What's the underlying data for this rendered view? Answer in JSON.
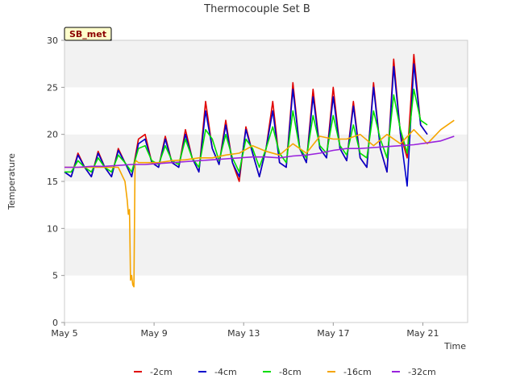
{
  "chart_data": {
    "type": "line",
    "title": "Thermocouple Set B",
    "xlabel": "Time",
    "ylabel": "Temperature",
    "ylim": [
      0,
      30
    ],
    "xlim": [
      "2023-05-05",
      "2023-05-23"
    ],
    "yticks": [
      0,
      5,
      10,
      15,
      20,
      25,
      30
    ],
    "xticks": [
      {
        "label": "May 5",
        "value": 0
      },
      {
        "label": "May 9",
        "value": 4
      },
      {
        "label": "May 13",
        "value": 8
      },
      {
        "label": "May 17",
        "value": 12
      },
      {
        "label": "May 21",
        "value": 16
      }
    ],
    "grid": "horizontal alternating bands",
    "legend_position": "bottom",
    "annotation": "SB_met",
    "series": [
      {
        "name": "-2cm",
        "color": "#e00000",
        "x": [
          0.0,
          0.3,
          0.6,
          0.9,
          1.2,
          1.5,
          1.8,
          2.1,
          2.4,
          2.7,
          3.0,
          3.3,
          3.6,
          3.9,
          4.2,
          4.5,
          4.8,
          5.1,
          5.4,
          5.7,
          6.0,
          6.3,
          6.6,
          6.9,
          7.2,
          7.5,
          7.8,
          8.1,
          8.4,
          8.7,
          9.0,
          9.3,
          9.6,
          9.9,
          10.2,
          10.5,
          10.8,
          11.1,
          11.4,
          11.7,
          12.0,
          12.3,
          12.6,
          12.9,
          13.2,
          13.5,
          13.8,
          14.1,
          14.4,
          14.7,
          15.0,
          15.3,
          15.6,
          15.9,
          16.2,
          16.5,
          16.8,
          17.1,
          17.4
        ],
        "y": [
          16.0,
          15.5,
          18.0,
          16.5,
          15.5,
          18.2,
          16.5,
          15.5,
          18.5,
          17.0,
          15.5,
          19.5,
          20.0,
          17.0,
          16.5,
          19.8,
          17.0,
          16.5,
          20.5,
          17.5,
          16.0,
          23.5,
          18.5,
          16.8,
          21.5,
          17.0,
          15.0,
          20.8,
          18.0,
          15.5,
          18.5,
          23.5,
          17.0,
          16.5,
          25.5,
          18.5,
          17.0,
          24.8,
          18.5,
          17.5,
          25.0,
          18.5,
          17.2,
          23.5,
          17.5,
          16.5,
          25.5,
          18.5,
          16.0,
          28.0,
          20.0,
          17.5,
          28.5,
          21.0,
          20.0,
          null,
          null,
          null,
          null
        ]
      },
      {
        "name": "-4cm",
        "color": "#0000cc",
        "x": [
          0.0,
          0.3,
          0.6,
          0.9,
          1.2,
          1.5,
          1.8,
          2.1,
          2.4,
          2.7,
          3.0,
          3.3,
          3.6,
          3.9,
          4.2,
          4.5,
          4.8,
          5.1,
          5.4,
          5.7,
          6.0,
          6.3,
          6.6,
          6.9,
          7.2,
          7.5,
          7.8,
          8.1,
          8.4,
          8.7,
          9.0,
          9.3,
          9.6,
          9.9,
          10.2,
          10.5,
          10.8,
          11.1,
          11.4,
          11.7,
          12.0,
          12.3,
          12.6,
          12.9,
          13.2,
          13.5,
          13.8,
          14.1,
          14.4,
          14.7,
          15.0,
          15.3,
          15.6,
          15.9,
          16.2,
          16.5,
          16.8,
          17.1,
          17.4
        ],
        "y": [
          16.0,
          15.5,
          17.8,
          16.5,
          15.5,
          18.0,
          16.5,
          15.5,
          18.3,
          17.0,
          15.5,
          19.0,
          19.5,
          17.0,
          16.5,
          19.5,
          17.0,
          16.5,
          20.0,
          17.5,
          16.0,
          22.5,
          18.5,
          16.8,
          21.0,
          17.0,
          15.5,
          20.5,
          18.0,
          15.5,
          18.5,
          22.5,
          17.0,
          16.5,
          24.8,
          18.5,
          17.0,
          24.0,
          18.5,
          17.5,
          24.0,
          18.5,
          17.2,
          23.0,
          17.5,
          16.5,
          25.0,
          18.5,
          16.0,
          27.2,
          20.0,
          14.5,
          27.5,
          21.0,
          20.0,
          null,
          null,
          null,
          null
        ]
      },
      {
        "name": "-8cm",
        "color": "#00dd00",
        "x": [
          0.0,
          0.3,
          0.6,
          0.9,
          1.2,
          1.5,
          1.8,
          2.1,
          2.4,
          2.7,
          3.0,
          3.3,
          3.6,
          3.9,
          4.2,
          4.5,
          4.8,
          5.1,
          5.4,
          5.7,
          6.0,
          6.3,
          6.6,
          6.9,
          7.2,
          7.5,
          7.8,
          8.1,
          8.4,
          8.7,
          9.0,
          9.3,
          9.6,
          9.9,
          10.2,
          10.5,
          10.8,
          11.1,
          11.4,
          11.7,
          12.0,
          12.3,
          12.6,
          12.9,
          13.2,
          13.5,
          13.8,
          14.1,
          14.4,
          14.7,
          15.0,
          15.3,
          15.6,
          15.9,
          16.2,
          16.5,
          16.8,
          17.1,
          17.4
        ],
        "y": [
          16.0,
          16.0,
          17.2,
          16.5,
          16.0,
          17.5,
          16.5,
          16.0,
          17.8,
          17.0,
          16.0,
          18.5,
          18.8,
          17.2,
          16.8,
          18.8,
          17.2,
          16.8,
          19.5,
          17.5,
          16.5,
          20.5,
          19.5,
          17.2,
          20.0,
          17.5,
          16.0,
          19.5,
          18.5,
          16.5,
          18.5,
          20.8,
          18.0,
          17.0,
          22.5,
          18.5,
          17.5,
          22.0,
          18.8,
          18.0,
          22.0,
          18.8,
          17.8,
          21.0,
          18.0,
          17.5,
          22.5,
          19.5,
          17.5,
          24.2,
          20.5,
          18.0,
          24.8,
          21.5,
          21.0,
          null,
          null,
          null,
          null
        ]
      },
      {
        "name": "-16cm",
        "color": "#f5a500",
        "x": [
          0.0,
          0.6,
          1.2,
          1.8,
          2.4,
          2.6,
          2.7,
          2.8,
          2.85,
          2.9,
          2.95,
          3.0,
          3.05,
          3.1,
          3.15,
          3.2,
          3.3,
          3.6,
          4.2,
          4.8,
          5.4,
          6.0,
          6.6,
          7.2,
          7.8,
          8.4,
          9.0,
          9.6,
          10.2,
          10.8,
          11.4,
          12.0,
          12.6,
          13.2,
          13.8,
          14.4,
          15.0,
          15.6,
          16.2,
          16.8,
          17.4
        ],
        "y": [
          16.5,
          16.5,
          16.5,
          16.5,
          16.5,
          15.5,
          15.0,
          13.0,
          11.5,
          12.0,
          4.5,
          5.0,
          4.0,
          3.8,
          17.0,
          17.2,
          17.0,
          17.0,
          17.0,
          17.2,
          17.3,
          17.5,
          17.5,
          17.8,
          18.0,
          18.8,
          18.2,
          17.8,
          19.0,
          18.0,
          19.8,
          19.5,
          19.5,
          20.0,
          18.8,
          20.0,
          19.0,
          20.5,
          19.0,
          20.5,
          21.5
        ]
      },
      {
        "name": "-32cm",
        "color": "#9922dd",
        "x": [
          0.0,
          0.6,
          1.2,
          1.8,
          2.4,
          3.0,
          3.6,
          4.2,
          4.8,
          5.4,
          6.0,
          6.6,
          7.2,
          7.8,
          8.4,
          9.0,
          9.6,
          10.2,
          10.8,
          11.4,
          12.0,
          12.6,
          13.2,
          13.8,
          14.4,
          15.0,
          15.6,
          16.2,
          16.8,
          17.4
        ],
        "y": [
          16.5,
          16.5,
          16.6,
          16.6,
          16.7,
          16.8,
          16.8,
          16.9,
          17.0,
          17.1,
          17.2,
          17.3,
          17.4,
          17.5,
          17.6,
          17.6,
          17.5,
          17.7,
          17.8,
          18.0,
          18.3,
          18.5,
          18.5,
          18.6,
          18.7,
          18.8,
          18.9,
          19.1,
          19.3,
          19.8
        ]
      }
    ]
  }
}
